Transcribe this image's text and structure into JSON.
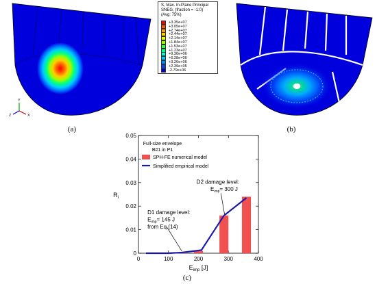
{
  "panels": {
    "a_caption": "(a)",
    "b_caption": "(b)",
    "c_caption": "(c)",
    "axis_triad": {
      "y": "Y",
      "x": "X",
      "z": "Z"
    }
  },
  "contour_legend": {
    "title_lines": [
      "S, Max. In-Plane Principal",
      "SNEG, (fraction = -1.0)",
      "(Avg: 75%)"
    ],
    "entries": [
      {
        "value": "+3.35e+07",
        "color": "#ff0000"
      },
      {
        "value": "+3.05e+07",
        "color": "#ff5500"
      },
      {
        "value": "+2.74e+07",
        "color": "#ff9900"
      },
      {
        "value": "+2.44e+07",
        "color": "#ffcc00"
      },
      {
        "value": "+2.14e+07",
        "color": "#e6ff00"
      },
      {
        "value": "+1.84e+07",
        "color": "#99ff00"
      },
      {
        "value": "+1.53e+07",
        "color": "#33ff33"
      },
      {
        "value": "+1.23e+07",
        "color": "#00ff88"
      },
      {
        "value": "+9.30e+06",
        "color": "#00ffcc"
      },
      {
        "value": "+6.28e+06",
        "color": "#00ccff"
      },
      {
        "value": "+3.26e+06",
        "color": "#0088ff"
      },
      {
        "value": "+2.39e+05",
        "color": "#0044ff"
      },
      {
        "value": "-2.79e+06",
        "color": "#0000dd"
      }
    ]
  },
  "chart_data": {
    "type": "bar",
    "annotation_top": [
      "Full-size envelope",
      "B#1 in P1"
    ],
    "xlabel": "E",
    "xlabel_sub": "imp",
    "xlabel_unit": "[J]",
    "ylabel": "R",
    "ylabel_sub": "i",
    "xlim": [
      0,
      400
    ],
    "ylim": [
      0,
      0.05
    ],
    "xticks": [
      0,
      100,
      200,
      300,
      400
    ],
    "yticks": [
      0,
      0.01,
      0.02,
      0.03,
      0.04,
      0.05
    ],
    "ytick_labels": [
      "0",
      "0.01",
      "0.02",
      "0.03",
      "0.04",
      "0.05"
    ],
    "bar_width": 30,
    "series": [
      {
        "name": "SPH-FE numerical model",
        "kind": "bar",
        "color": "#f05050",
        "x": [
          145,
          200,
          285,
          360
        ],
        "values": [
          0.0002,
          0.001,
          0.016,
          0.024
        ]
      },
      {
        "name": "Simplified empirical model",
        "kind": "line",
        "color": "#1a1aaa",
        "x": [
          25,
          100,
          145,
          210,
          285,
          360
        ],
        "values": [
          0,
          0,
          0.0003,
          0.0013,
          0.016,
          0.0235
        ]
      }
    ],
    "annotations": [
      {
        "lines": [
          "D2 damage level:",
          "E",
          "= 300 J"
        ],
        "sub": "imp"
      },
      {
        "lines": [
          "D1 damage level:",
          "E",
          "= 145 J",
          "from Eq.(14)"
        ],
        "sub": "imp"
      }
    ]
  }
}
